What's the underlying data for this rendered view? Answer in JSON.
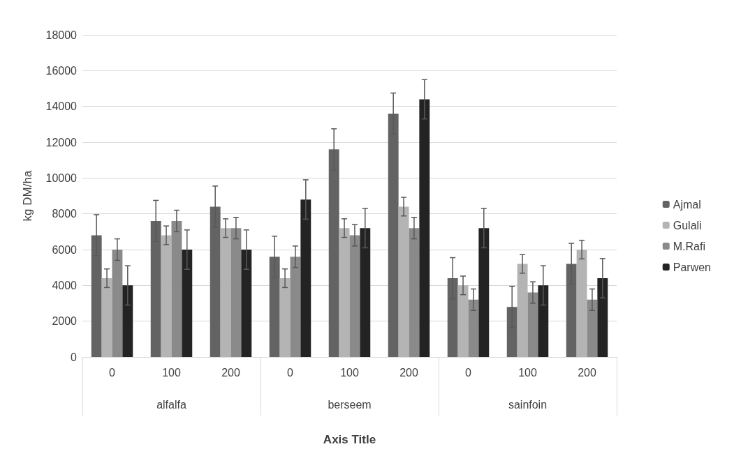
{
  "chart_data": {
    "type": "bar",
    "xlabel": "Axis Title",
    "ylabel": "kg DM/ha",
    "categories": [
      "0",
      "100",
      "200",
      "0",
      "100",
      "200",
      "0",
      "100",
      "200"
    ],
    "annotations": [
      "alfalfa",
      "berseem",
      "sainfoin"
    ],
    "series": [
      {
        "name": "Ajmal",
        "color": "#636363",
        "values": [
          6800,
          7600,
          8400,
          5600,
          11600,
          13600,
          4400,
          2800,
          5200
        ],
        "errors": [
          1150,
          1150,
          1150,
          1150,
          1150,
          1150,
          1150,
          1150,
          1150
        ]
      },
      {
        "name": "Gulali",
        "color": "#b4b4b4",
        "values": [
          4400,
          6800,
          7200,
          4400,
          7200,
          8400,
          4000,
          5200,
          6000
        ],
        "errors": [
          520,
          520,
          520,
          520,
          520,
          520,
          520,
          520,
          520
        ]
      },
      {
        "name": "M.Rafi",
        "color": "#8a8a8a",
        "values": [
          6000,
          7600,
          7200,
          5600,
          6800,
          7200,
          3200,
          3600,
          3200
        ],
        "errors": [
          600,
          600,
          600,
          600,
          600,
          600,
          600,
          600,
          600
        ]
      },
      {
        "name": "Parwen",
        "color": "#232323",
        "values": [
          4000,
          6000,
          6000,
          8800,
          7200,
          14400,
          7200,
          4000,
          4400
        ],
        "errors": [
          1100,
          1100,
          1100,
          1100,
          1100,
          1100,
          1100,
          1100,
          1100
        ]
      }
    ],
    "ylim": [
      0,
      18000
    ],
    "yticks": [
      0,
      2000,
      4000,
      6000,
      8000,
      10000,
      12000,
      14000,
      16000,
      18000
    ],
    "grid": "y",
    "legend": "right"
  }
}
